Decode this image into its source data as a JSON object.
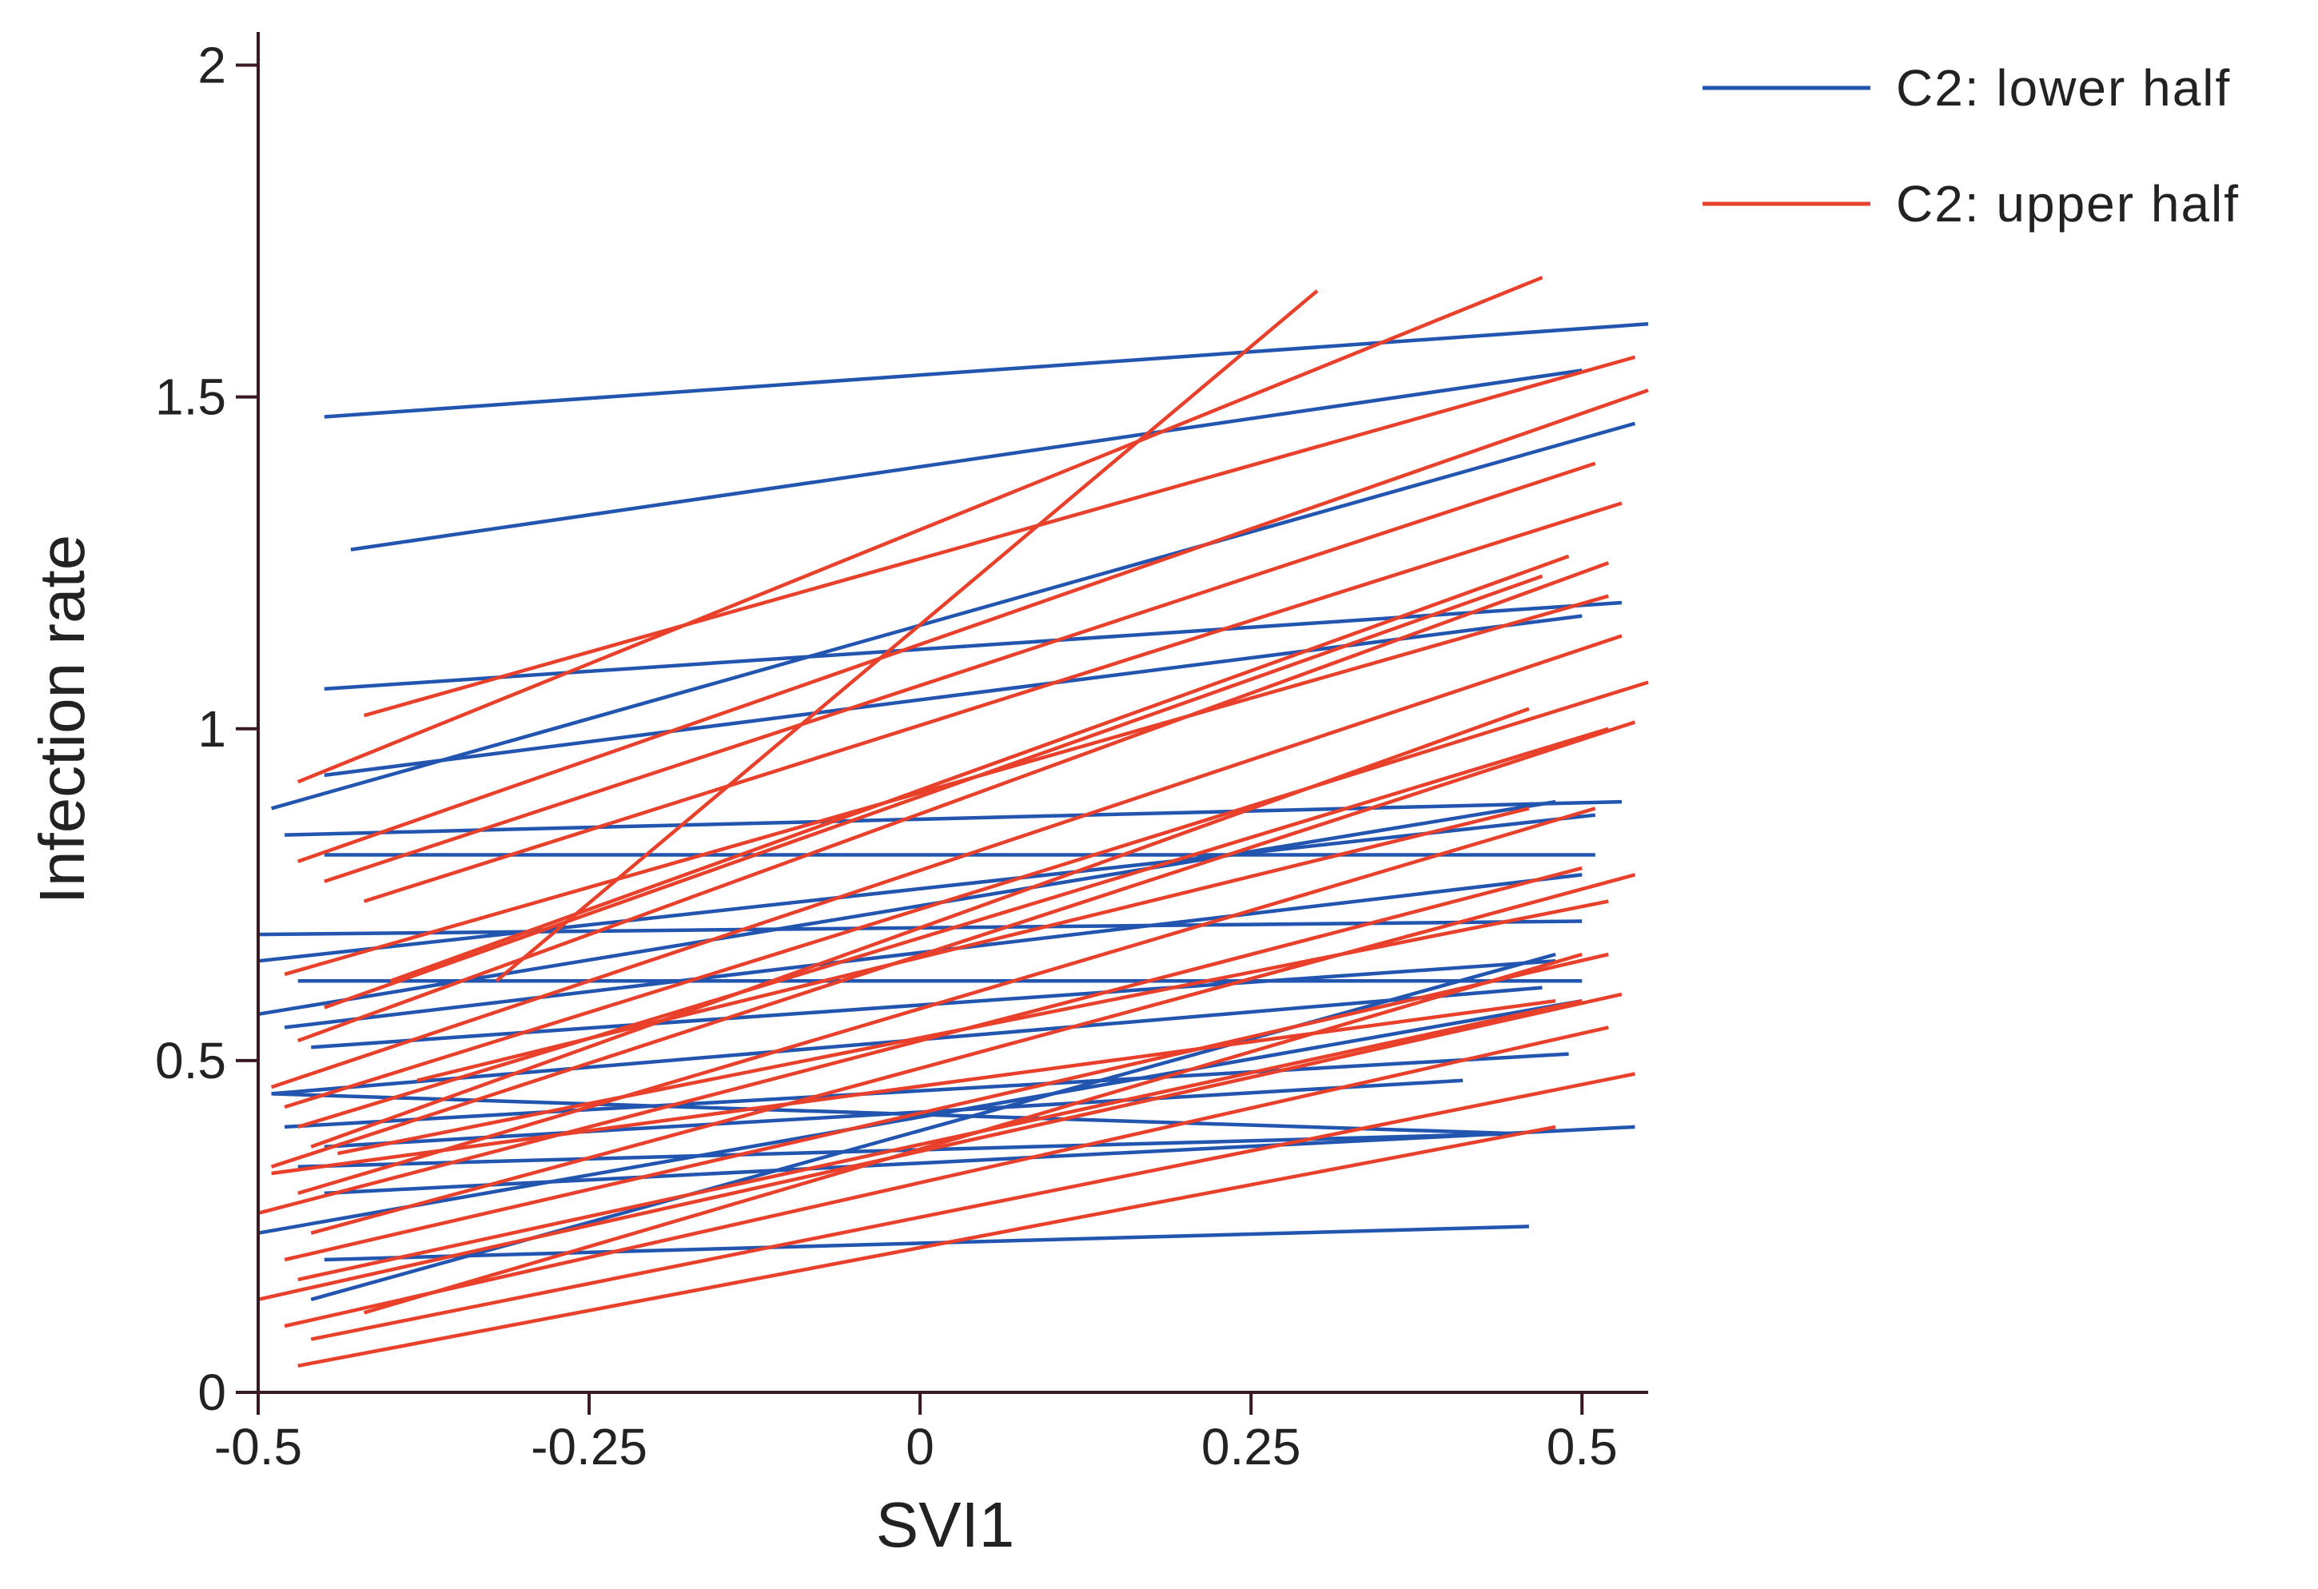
{
  "chart_data": {
    "type": "line",
    "title": "",
    "xlabel": "SVI1",
    "ylabel": "Infection rate",
    "xlim": [
      -0.5,
      0.55
    ],
    "ylim": [
      0,
      2.05
    ],
    "xticks": [
      {
        "value": -0.5,
        "label": "-0.5"
      },
      {
        "value": -0.25,
        "label": "-0.25"
      },
      {
        "value": 0,
        "label": "0"
      },
      {
        "value": 0.25,
        "label": "0.25"
      },
      {
        "value": 0.5,
        "label": "0.5"
      }
    ],
    "yticks": [
      {
        "value": 0,
        "label": "0"
      },
      {
        "value": 0.5,
        "label": "0.5"
      },
      {
        "value": 1,
        "label": "1"
      },
      {
        "value": 1.5,
        "label": "1.5"
      },
      {
        "value": 2,
        "label": "2"
      }
    ],
    "legend_position": "top-right",
    "grid": false,
    "series": [
      {
        "name": "C2: lower half",
        "color": "#2255b0",
        "lines": [
          [
            [
              -0.45,
              1.47
            ],
            [
              0.55,
              1.61
            ]
          ],
          [
            [
              -0.43,
              1.27
            ],
            [
              0.5,
              1.54
            ]
          ],
          [
            [
              -0.49,
              0.88
            ],
            [
              0.54,
              1.46
            ]
          ],
          [
            [
              -0.45,
              1.06
            ],
            [
              0.53,
              1.19
            ]
          ],
          [
            [
              -0.45,
              0.93
            ],
            [
              0.5,
              1.17
            ]
          ],
          [
            [
              -0.48,
              0.84
            ],
            [
              0.53,
              0.89
            ]
          ],
          [
            [
              -0.45,
              0.81
            ],
            [
              0.51,
              0.81
            ]
          ],
          [
            [
              -0.5,
              0.69
            ],
            [
              0.5,
              0.71
            ]
          ],
          [
            [
              -0.5,
              0.65
            ],
            [
              0.51,
              0.87
            ]
          ],
          [
            [
              -0.47,
              0.62
            ],
            [
              0.5,
              0.62
            ]
          ],
          [
            [
              -0.5,
              0.57
            ],
            [
              0.48,
              0.89
            ]
          ],
          [
            [
              -0.48,
              0.55
            ],
            [
              0.5,
              0.78
            ]
          ],
          [
            [
              -0.46,
              0.52
            ],
            [
              0.48,
              0.65
            ]
          ],
          [
            [
              -0.49,
              0.45
            ],
            [
              0.47,
              0.61
            ]
          ],
          [
            [
              -0.49,
              0.45
            ],
            [
              0.45,
              0.39
            ]
          ],
          [
            [
              -0.48,
              0.4
            ],
            [
              0.49,
              0.51
            ]
          ],
          [
            [
              -0.45,
              0.37
            ],
            [
              0.41,
              0.47
            ]
          ],
          [
            [
              -0.47,
              0.34
            ],
            [
              0.45,
              0.39
            ]
          ],
          [
            [
              -0.45,
              0.3
            ],
            [
              0.54,
              0.4
            ]
          ],
          [
            [
              -0.5,
              0.24
            ],
            [
              0.5,
              0.59
            ]
          ],
          [
            [
              -0.45,
              0.2
            ],
            [
              0.46,
              0.25
            ]
          ],
          [
            [
              -0.46,
              0.14
            ],
            [
              0.48,
              0.66
            ]
          ]
        ]
      },
      {
        "name": "C2: upper half",
        "color": "#e8402a",
        "lines": [
          [
            [
              -0.47,
              0.92
            ],
            [
              0.47,
              1.68
            ]
          ],
          [
            [
              -0.42,
              1.02
            ],
            [
              0.54,
              1.56
            ]
          ],
          [
            [
              -0.32,
              0.62
            ],
            [
              0.3,
              1.66
            ]
          ],
          [
            [
              -0.47,
              0.8
            ],
            [
              0.55,
              1.51
            ]
          ],
          [
            [
              -0.45,
              0.77
            ],
            [
              0.51,
              1.4
            ]
          ],
          [
            [
              -0.42,
              0.74
            ],
            [
              0.53,
              1.34
            ]
          ],
          [
            [
              -0.4,
              0.62
            ],
            [
              0.49,
              1.26
            ]
          ],
          [
            [
              -0.48,
              0.63
            ],
            [
              0.52,
              1.2
            ]
          ],
          [
            [
              -0.45,
              0.58
            ],
            [
              0.47,
              1.23
            ]
          ],
          [
            [
              -0.47,
              0.53
            ],
            [
              0.52,
              1.25
            ]
          ],
          [
            [
              -0.49,
              0.46
            ],
            [
              0.53,
              1.14
            ]
          ],
          [
            [
              -0.48,
              0.43
            ],
            [
              0.55,
              1.07
            ]
          ],
          [
            [
              -0.47,
              0.4
            ],
            [
              0.52,
              1.0
            ]
          ],
          [
            [
              -0.46,
              0.37
            ],
            [
              0.46,
              1.03
            ]
          ],
          [
            [
              -0.49,
              0.34
            ],
            [
              0.54,
              1.01
            ]
          ],
          [
            [
              -0.47,
              0.3
            ],
            [
              0.51,
              0.88
            ]
          ],
          [
            [
              -0.5,
              0.27
            ],
            [
              0.5,
              0.79
            ]
          ],
          [
            [
              -0.46,
              0.24
            ],
            [
              0.54,
              0.78
            ]
          ],
          [
            [
              -0.48,
              0.2
            ],
            [
              0.52,
              0.66
            ]
          ],
          [
            [
              -0.47,
              0.17
            ],
            [
              0.5,
              0.59
            ]
          ],
          [
            [
              -0.5,
              0.14
            ],
            [
              0.53,
              0.6
            ]
          ],
          [
            [
              -0.48,
              0.1
            ],
            [
              0.52,
              0.55
            ]
          ],
          [
            [
              -0.46,
              0.08
            ],
            [
              0.54,
              0.48
            ]
          ],
          [
            [
              -0.47,
              0.04
            ],
            [
              0.48,
              0.4
            ]
          ],
          [
            [
              -0.42,
              0.12
            ],
            [
              0.5,
              0.66
            ]
          ],
          [
            [
              -0.38,
              0.47
            ],
            [
              0.46,
              0.88
            ]
          ],
          [
            [
              -0.44,
              0.36
            ],
            [
              0.52,
              0.74
            ]
          ],
          [
            [
              -0.49,
              0.33
            ],
            [
              0.48,
              0.59
            ]
          ]
        ]
      }
    ]
  }
}
